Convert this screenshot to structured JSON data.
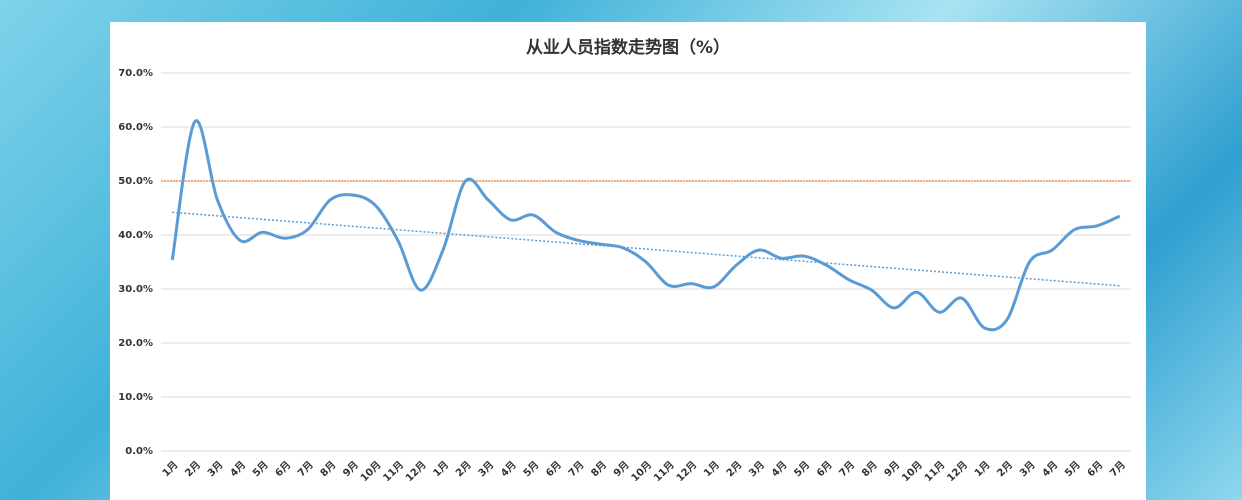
{
  "chart_data": {
    "type": "line",
    "title": "从业人员指数走势图（%）",
    "categories": [
      "1月",
      "2月",
      "3月",
      "4月",
      "5月",
      "6月",
      "7月",
      "8月",
      "9月",
      "10月",
      "11月",
      "12月",
      "1月",
      "2月",
      "3月",
      "4月",
      "5月",
      "6月",
      "7月",
      "8月",
      "9月",
      "10月",
      "11月",
      "12月",
      "1月",
      "2月",
      "3月",
      "4月",
      "5月",
      "6月",
      "7月",
      "8月",
      "9月",
      "10月",
      "11月",
      "12月",
      "1月",
      "2月",
      "3月",
      "4月",
      "5月",
      "6月",
      "7月"
    ],
    "values": [
      35.4,
      61,
      46.5,
      39,
      40.5,
      39.4,
      41,
      46.5,
      47.4,
      45.5,
      39,
      29.8,
      37.2,
      50,
      46.5,
      42.8,
      43.7,
      40.5,
      39,
      38.3,
      37.6,
      35,
      30.7,
      31,
      30.4,
      34.4,
      37.2,
      35.7,
      36.1,
      34.4,
      31.7,
      29.8,
      26.5,
      29.4,
      25.7,
      28.3,
      22.8,
      24.3,
      35,
      37.2,
      41,
      41.7,
      43.5
    ],
    "color": "#5b9bd5",
    "reference_line": {
      "value": 50,
      "color": "#ed7d31"
    },
    "trend": {
      "start": 44.2,
      "end": 30.6,
      "color": "#5b9bd5"
    },
    "ylim": [
      0,
      70
    ],
    "yticks": [
      {
        "value": 0,
        "label": "0.0%"
      },
      {
        "value": 10,
        "label": "10.0%"
      },
      {
        "value": 20,
        "label": "20.0%"
      },
      {
        "value": 30,
        "label": "30.0%"
      },
      {
        "value": 40,
        "label": "40.0%"
      },
      {
        "value": 50,
        "label": "50.0%"
      },
      {
        "value": 60,
        "label": "60.0%"
      },
      {
        "value": 70,
        "label": "70.0%"
      }
    ],
    "grid": true
  }
}
